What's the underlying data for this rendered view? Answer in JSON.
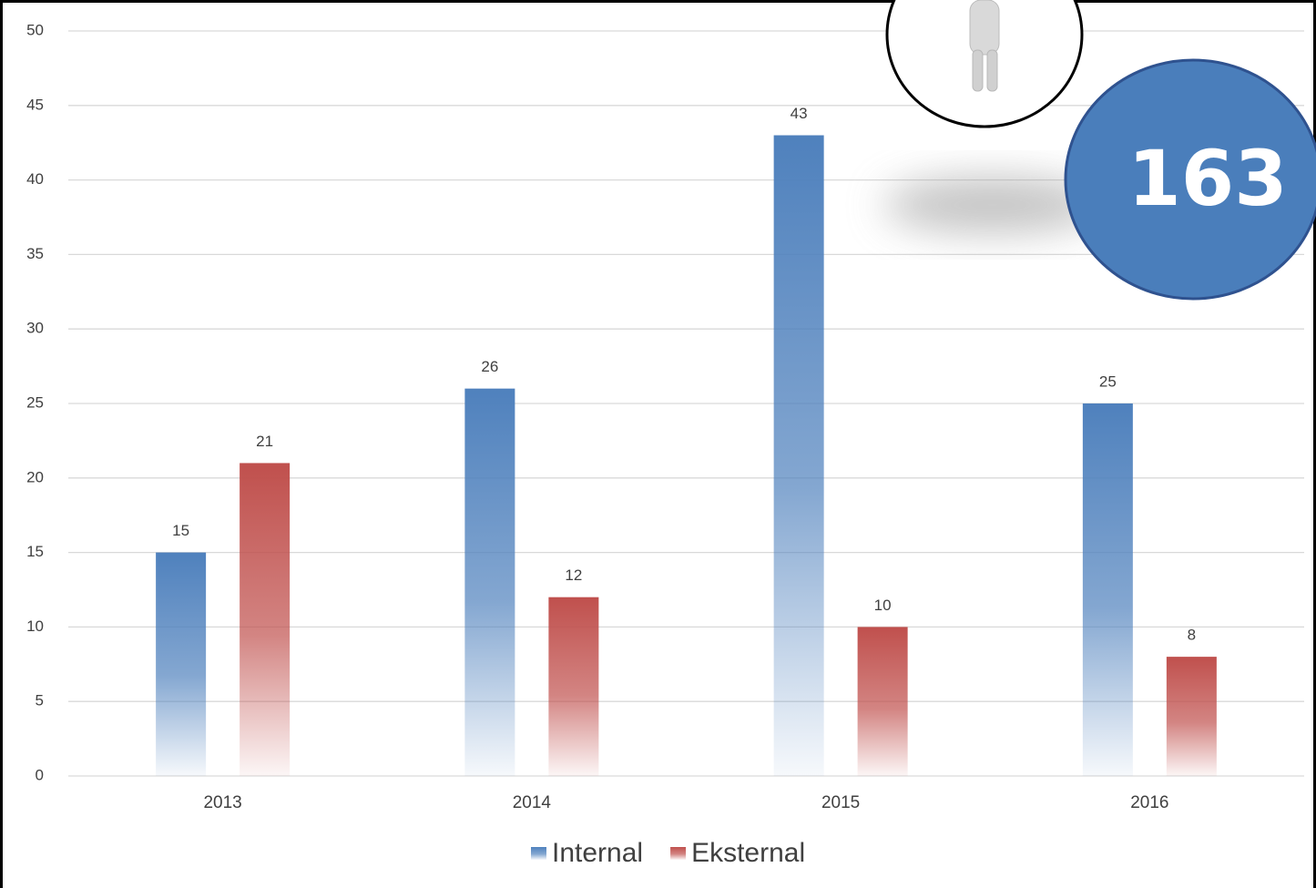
{
  "chart_data": {
    "type": "bar",
    "categories": [
      "2013",
      "2014",
      "2015",
      "2016"
    ],
    "series": [
      {
        "name": "Internal",
        "color": "#4f81bd",
        "values": [
          15,
          26,
          43,
          25
        ]
      },
      {
        "name": "Eksternal",
        "color": "#c0504d",
        "values": [
          21,
          12,
          10,
          8
        ]
      }
    ],
    "ylim": [
      0,
      50
    ],
    "yticks": [
      0,
      5,
      10,
      15,
      20,
      25,
      30,
      35,
      40,
      45,
      50
    ],
    "grid": true,
    "legend": "bottom",
    "annotations": [
      {
        "text": "163"
      }
    ]
  }
}
